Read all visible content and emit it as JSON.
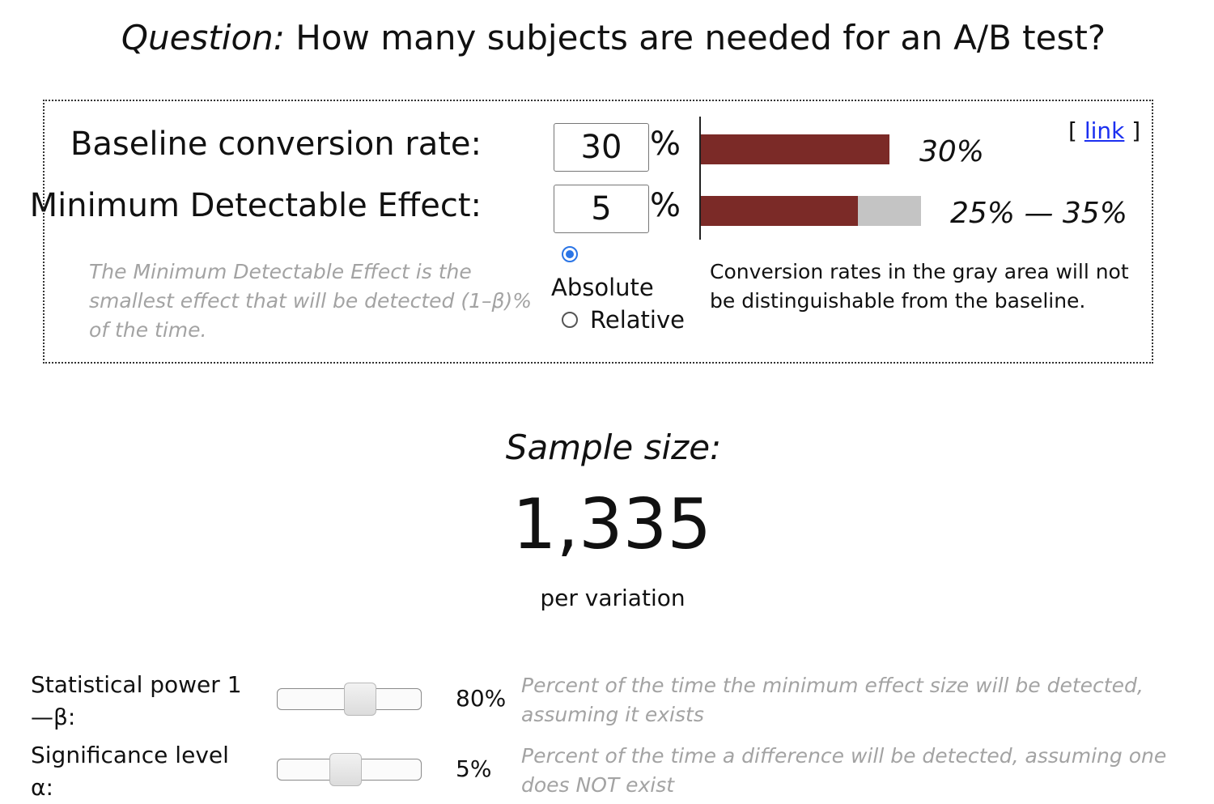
{
  "header": {
    "title_prefix": "Question:",
    "title_text": "How many subjects are needed for an A/B test?"
  },
  "baseline": {
    "label": "Baseline conversion rate:",
    "value": "30",
    "unit": "%",
    "bar_fraction": 0.3,
    "bar_text": "30%",
    "bar_color": "#7b2a27"
  },
  "mde": {
    "label": "Minimum Detectable Effect:",
    "value": "5",
    "unit": "%",
    "range_low_fraction": 0.25,
    "range_high_fraction": 0.35,
    "range_text": "25% — 35%",
    "range_color": "#c4c4c4",
    "help_text": "The Minimum Detectable Effect is the smallest effect that will be detected (1–β)% of the time.",
    "mode_options": [
      {
        "label": "Absolute",
        "selected": true
      },
      {
        "label": "Relative",
        "selected": false
      }
    ]
  },
  "link": {
    "open": "[",
    "label": "link",
    "close": "]",
    "color": "#1b2ff0"
  },
  "note": "Conversion rates in the gray area will not be distinguishable from the baseline.",
  "result": {
    "label": "Sample size:",
    "value": "1,335",
    "unit": "per variation"
  },
  "controls": {
    "power": {
      "label": "Statistical power 1—β:",
      "value_text": "80%",
      "slider_fraction": 0.6,
      "help": "Percent of the time the minimum effect size will be detected, assuming it exists"
    },
    "significance": {
      "label": "Significance level α:",
      "value_text": "5%",
      "slider_fraction": 0.47,
      "help": "Percent of the time a difference will be detected, assuming one does NOT exist"
    }
  },
  "accent_color": "#2b75e6"
}
